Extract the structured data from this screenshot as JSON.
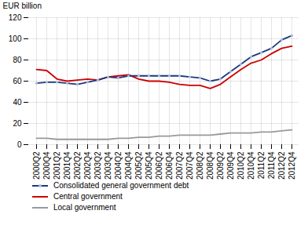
{
  "chart_data": {
    "type": "line",
    "ylabel": "EUR billion",
    "categories": [
      "2000Q2",
      "2000Q4",
      "2001Q2",
      "2001Q4",
      "2002Q2",
      "2002Q4",
      "2003Q2",
      "2003Q4",
      "2004Q2",
      "2004Q4",
      "2005Q2",
      "2005Q4",
      "2006Q2",
      "2006Q4",
      "2007Q2",
      "2007Q4",
      "2008Q2",
      "2008Q4",
      "2009Q2",
      "2009Q4",
      "2010Q2",
      "2010Q4",
      "2011Q2",
      "2011Q4",
      "2012Q2",
      "2012Q4"
    ],
    "series": [
      {
        "name": "Consolidated general government debt",
        "color": "#1a3a7a",
        "marker": "circle",
        "values": [
          58,
          59,
          59,
          58,
          57,
          59,
          61,
          64,
          63,
          65,
          65,
          65,
          65,
          65,
          65,
          64,
          63,
          60,
          62,
          69,
          76,
          83,
          87,
          91,
          99,
          103
        ]
      },
      {
        "name": "Central government",
        "color": "#cc0000",
        "values": [
          71,
          70,
          62,
          60,
          61,
          62,
          61,
          64,
          65,
          66,
          62,
          60,
          60,
          59,
          57,
          56,
          56,
          53,
          57,
          64,
          71,
          77,
          80,
          86,
          91,
          93
        ]
      },
      {
        "name": "Local government",
        "color": "#999999",
        "values": [
          6,
          6,
          5,
          5,
          5,
          5,
          5,
          5,
          6,
          6,
          7,
          7,
          8,
          8,
          9,
          9,
          9,
          9,
          10,
          11,
          11,
          11,
          12,
          12,
          13,
          14
        ]
      }
    ],
    "ylim": [
      0,
      120
    ],
    "yticks": [
      0,
      20,
      40,
      60,
      80,
      100,
      120
    ],
    "grid": true,
    "legend": "bottom"
  }
}
